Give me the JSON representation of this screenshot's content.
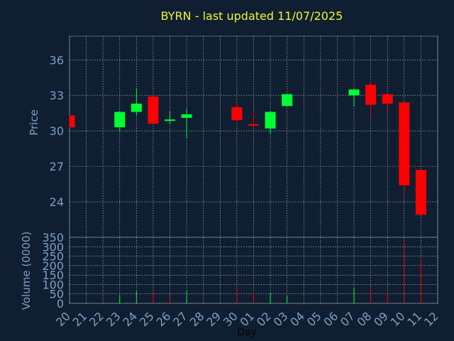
{
  "title": "BYRN - last updated 11/07/2025",
  "colors": {
    "background": "#0f1f31",
    "grid": "#ffffff",
    "axis_text": "#7f9fc3",
    "title": "#f4f435",
    "up": "#00ff33",
    "down": "#ff0000"
  },
  "chart_data": [
    {
      "type": "candlestick",
      "ylabel": "Price",
      "ylim": [
        21.0,
        38.0
      ],
      "yticks": [
        24,
        27,
        30,
        33,
        36
      ],
      "categories": [
        "20",
        "21",
        "22",
        "23",
        "24",
        "25",
        "26",
        "27",
        "28",
        "29",
        "30",
        "01",
        "02",
        "03",
        "04",
        "05",
        "06",
        "07",
        "08",
        "09",
        "10",
        "11",
        "12"
      ],
      "grid": true,
      "candles": [
        {
          "x": "20",
          "open": 31.3,
          "close": 30.3,
          "high": 31.3,
          "low": 30.3
        },
        {
          "x": "23",
          "open": 30.3,
          "close": 31.6,
          "high": 31.7,
          "low": 29.9
        },
        {
          "x": "24",
          "open": 31.6,
          "close": 32.3,
          "high": 33.6,
          "low": 31.3
        },
        {
          "x": "25",
          "open": 32.9,
          "close": 30.6,
          "high": 33.0,
          "low": 30.6
        },
        {
          "x": "26",
          "open": 30.9,
          "close": 30.9,
          "high": 31.7,
          "low": 30.6
        },
        {
          "x": "27",
          "open": 31.1,
          "close": 31.4,
          "high": 31.9,
          "low": 29.4
        },
        {
          "x": "30",
          "open": 32.0,
          "close": 30.9,
          "high": 32.5,
          "low": 30.8
        },
        {
          "x": "01",
          "open": 30.5,
          "close": 30.4,
          "high": 31.5,
          "low": 30.1
        },
        {
          "x": "02",
          "open": 30.2,
          "close": 31.6,
          "high": 31.7,
          "low": 29.7
        },
        {
          "x": "03",
          "open": 32.1,
          "close": 33.1,
          "high": 33.1,
          "low": 32.1
        },
        {
          "x": "07",
          "open": 33.0,
          "close": 33.5,
          "high": 33.6,
          "low": 32.1
        },
        {
          "x": "08",
          "open": 33.9,
          "close": 32.2,
          "high": 34.2,
          "low": 31.3
        },
        {
          "x": "09",
          "open": 33.1,
          "close": 32.3,
          "high": 33.1,
          "low": 31.5
        },
        {
          "x": "10",
          "open": 32.4,
          "close": 25.4,
          "high": 32.4,
          "low": 24.6
        },
        {
          "x": "11",
          "open": 26.7,
          "close": 22.9,
          "high": 26.7,
          "low": 22.9
        }
      ]
    },
    {
      "type": "bar",
      "xlabel": "Day",
      "ylabel": "Volume (0000)",
      "ylim": [
        0,
        350
      ],
      "yticks": [
        0,
        50,
        100,
        150,
        200,
        250,
        300,
        350
      ],
      "categories": [
        "20",
        "21",
        "22",
        "23",
        "24",
        "25",
        "26",
        "27",
        "28",
        "29",
        "30",
        "01",
        "02",
        "03",
        "04",
        "05",
        "06",
        "07",
        "08",
        "09",
        "10",
        "11",
        "12"
      ],
      "values": [
        {
          "x": "23",
          "value": 45,
          "direction": "up"
        },
        {
          "x": "24",
          "value": 65,
          "direction": "up"
        },
        {
          "x": "25",
          "value": 55,
          "direction": "down"
        },
        {
          "x": "26",
          "value": 40,
          "direction": "down"
        },
        {
          "x": "27",
          "value": 65,
          "direction": "up"
        },
        {
          "x": "30",
          "value": 85,
          "direction": "down"
        },
        {
          "x": "01",
          "value": 60,
          "direction": "down"
        },
        {
          "x": "02",
          "value": 55,
          "direction": "up"
        },
        {
          "x": "03",
          "value": 40,
          "direction": "up"
        },
        {
          "x": "07",
          "value": 85,
          "direction": "up"
        },
        {
          "x": "08",
          "value": 90,
          "direction": "down"
        },
        {
          "x": "09",
          "value": 60,
          "direction": "down"
        },
        {
          "x": "10",
          "value": 325,
          "direction": "down"
        },
        {
          "x": "11",
          "value": 230,
          "direction": "down"
        }
      ]
    }
  ]
}
